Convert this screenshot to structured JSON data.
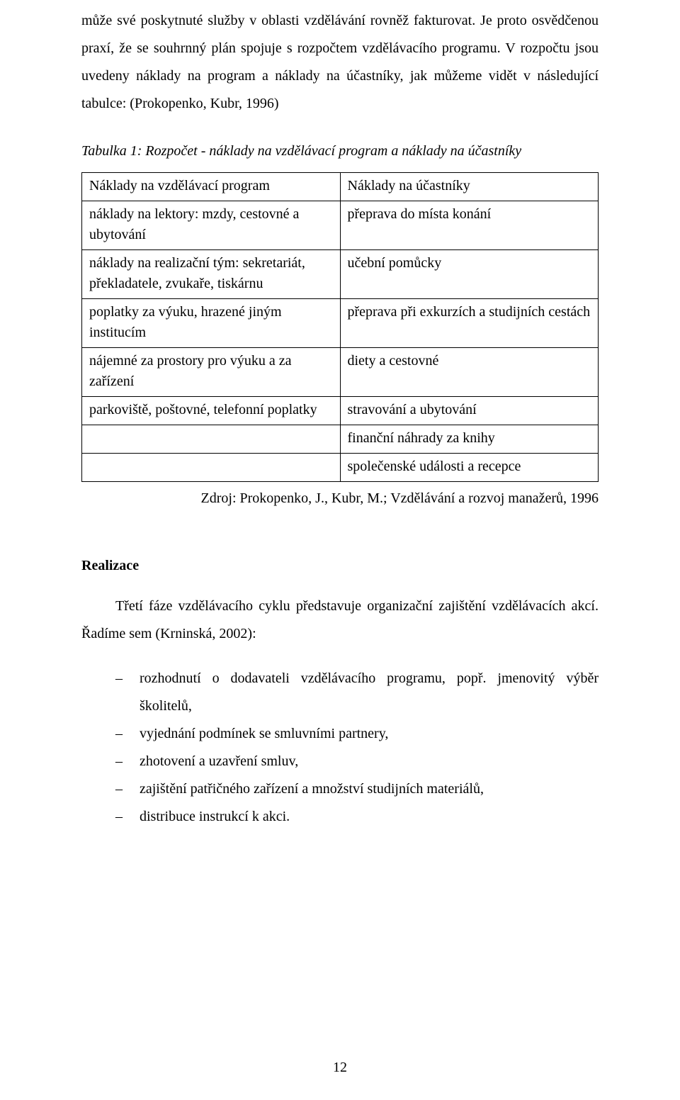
{
  "paragraph1": "může své poskytnuté služby v oblasti vzdělávání rovněž fakturovat. Je proto osvědčenou praxí, že se souhrnný plán spojuje s rozpočtem vzdělávacího programu. V rozpočtu jsou uvedeny náklady na program a náklady na účastníky, jak můžeme vidět v následující tabulce: (Prokopenko, Kubr, 1996)",
  "table": {
    "caption": "Tabulka 1: Rozpočet - náklady na vzdělávací program a náklady na účastníky",
    "headers": {
      "col1": "Náklady na vzdělávací program",
      "col2": "Náklady na účastníky"
    },
    "rows": [
      {
        "col1": "náklady na lektory: mzdy, cestovné a ubytování",
        "col2": "přeprava do místa konání"
      },
      {
        "col1": "náklady na realizační tým: sekretariát, překladatele, zvukaře, tiskárnu",
        "col2": "učební pomůcky"
      },
      {
        "col1": "poplatky za výuku, hrazené jiným institucím",
        "col2": "přeprava při exkurzích a studijních cestách"
      },
      {
        "col1": "nájemné za prostory pro výuku a za zařízení",
        "col2": "diety a cestovné"
      },
      {
        "col1": "parkoviště, poštovné, telefonní poplatky",
        "col2": "stravování a ubytování"
      },
      {
        "col1": "",
        "col2": "finanční náhrady za knihy"
      },
      {
        "col1": "",
        "col2": "společenské události a recepce"
      }
    ],
    "source": "Zdroj: Prokopenko, J., Kubr, M.; Vzdělávání a rozvoj manažerů, 1996"
  },
  "section": {
    "heading": "Realizace",
    "intro": "Třetí fáze vzdělávacího cyklu představuje organizační zajištění vzdělávacích akcí. Řadíme sem (Krninská, 2002):",
    "items": [
      "rozhodnutí o dodavateli vzdělávacího programu, popř. jmenovitý výběr školitelů,",
      "vyjednání podmínek se smluvními partnery,",
      "zhotovení a uzavření smluv,",
      "zajištění patřičného zařízení a množství studijních materiálů,",
      "distribuce instrukcí k akci."
    ]
  },
  "pageNumber": "12"
}
